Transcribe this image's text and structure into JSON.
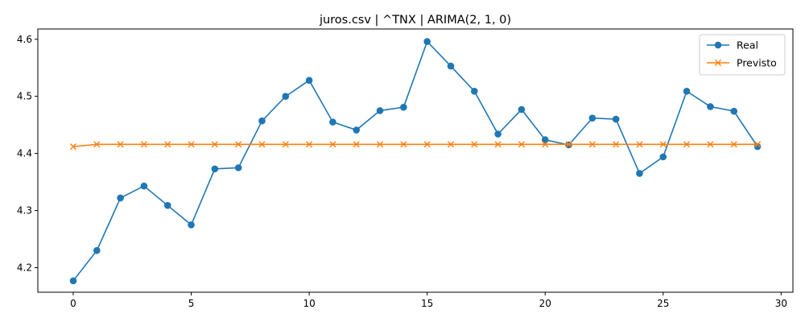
{
  "chart_data": {
    "type": "line",
    "title": "juros.csv | ^TNX | ARIMA(2, 1, 0)",
    "xlabel": "",
    "ylabel": "",
    "xlim": [
      -1.5,
      30.5
    ],
    "ylim": [
      4.157,
      4.618
    ],
    "x_ticks": [
      0,
      5,
      10,
      15,
      20,
      25,
      30
    ],
    "y_ticks": [
      4.2,
      4.3,
      4.4,
      4.5,
      4.6
    ],
    "grid": false,
    "legend_position": "top-right",
    "x": [
      0,
      1,
      2,
      3,
      4,
      5,
      6,
      7,
      8,
      9,
      10,
      11,
      12,
      13,
      14,
      15,
      16,
      17,
      18,
      19,
      20,
      21,
      22,
      23,
      24,
      25,
      26,
      27,
      28,
      29
    ],
    "series": [
      {
        "name": "Real",
        "color": "#1f77b4",
        "marker": "circle",
        "values": [
          4.177,
          4.23,
          4.322,
          4.343,
          4.309,
          4.275,
          4.373,
          4.375,
          4.457,
          4.5,
          4.528,
          4.455,
          4.441,
          4.475,
          4.481,
          4.596,
          4.553,
          4.509,
          4.434,
          4.477,
          4.424,
          4.415,
          4.462,
          4.46,
          4.365,
          4.394,
          4.509,
          4.482,
          4.474,
          4.412
        ]
      },
      {
        "name": "Previsto",
        "color": "#ff7f0e",
        "marker": "x",
        "values": [
          4.412,
          4.416,
          4.416,
          4.416,
          4.416,
          4.416,
          4.416,
          4.416,
          4.416,
          4.416,
          4.416,
          4.416,
          4.416,
          4.416,
          4.416,
          4.416,
          4.416,
          4.416,
          4.416,
          4.416,
          4.416,
          4.416,
          4.416,
          4.416,
          4.416,
          4.416,
          4.416,
          4.416,
          4.416,
          4.416
        ]
      }
    ]
  }
}
